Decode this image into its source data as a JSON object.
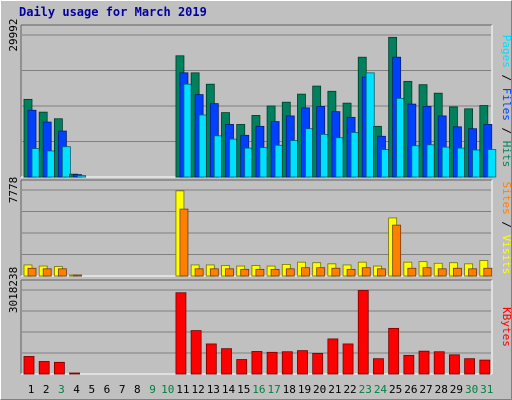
{
  "title": "Daily usage for March 2019",
  "colors": {
    "hits": "#00805c",
    "files": "#0040ff",
    "pages": "#00e0ff",
    "visits": "#ffff00",
    "sites": "#ff8000",
    "kbytes": "#ff0000",
    "weekend_label": "#008040",
    "weekday_label": "#000000"
  },
  "chart_data": [
    {
      "type": "bar",
      "title": "",
      "ylabel_parts": [
        {
          "text": "Pages",
          "color": "#00e0ff"
        },
        {
          "text": " / ",
          "color": "#000000"
        },
        {
          "text": "Files",
          "color": "#0040ff"
        },
        {
          "text": " / ",
          "color": "#000000"
        },
        {
          "text": "Hits",
          "color": "#00805c"
        }
      ],
      "ymax_label": "29992",
      "ylim": [
        0,
        29992
      ],
      "categories": [
        "1",
        "2",
        "3",
        "4",
        "5",
        "6",
        "7",
        "8",
        "9",
        "10",
        "11",
        "12",
        "13",
        "14",
        "15",
        "16",
        "17",
        "18",
        "19",
        "20",
        "21",
        "22",
        "23",
        "24",
        "25",
        "26",
        "27",
        "28",
        "29",
        "30",
        "31"
      ],
      "series": [
        {
          "name": "Hits",
          "values": [
            16400,
            13700,
            12300,
            600,
            0,
            0,
            0,
            0,
            0,
            0,
            25600,
            22000,
            19600,
            13600,
            11100,
            13000,
            15000,
            15800,
            17500,
            19200,
            18100,
            15600,
            25300,
            10700,
            29500,
            20200,
            19500,
            17700,
            14800,
            14400,
            15100
          ]
        },
        {
          "name": "Files",
          "values": [
            14100,
            11600,
            9700,
            500,
            0,
            0,
            0,
            0,
            0,
            0,
            22000,
            17400,
            15500,
            11100,
            8800,
            10700,
            11700,
            12900,
            14600,
            14900,
            13800,
            12600,
            21100,
            8600,
            25300,
            15400,
            14900,
            12900,
            10600,
            10200,
            11100
          ]
        },
        {
          "name": "Pages",
          "values": [
            6000,
            5500,
            6400,
            300,
            0,
            0,
            0,
            0,
            0,
            0,
            19600,
            13100,
            8700,
            8000,
            6100,
            6200,
            6700,
            7700,
            10200,
            9000,
            8300,
            9400,
            22000,
            5800,
            16600,
            6600,
            6800,
            6300,
            6100,
            5700,
            5800
          ]
        }
      ]
    },
    {
      "type": "bar",
      "title": "",
      "ylabel_parts": [
        {
          "text": "Sites",
          "color": "#ff8000"
        },
        {
          "text": " / ",
          "color": "#000000"
        },
        {
          "text": "Visits",
          "color": "#ffff00"
        }
      ],
      "ymax_label": "7778",
      "ylim": [
        0,
        7778
      ],
      "categories": [
        "1",
        "2",
        "3",
        "4",
        "5",
        "6",
        "7",
        "8",
        "9",
        "10",
        "11",
        "12",
        "13",
        "14",
        "15",
        "16",
        "17",
        "18",
        "19",
        "20",
        "21",
        "22",
        "23",
        "24",
        "25",
        "26",
        "27",
        "28",
        "29",
        "30",
        "31"
      ],
      "series": [
        {
          "name": "Visits",
          "values": [
            1000,
            900,
            850,
            80,
            0,
            0,
            0,
            0,
            0,
            0,
            7700,
            1000,
            1000,
            950,
            900,
            950,
            900,
            1050,
            1250,
            1200,
            1100,
            1000,
            1250,
            900,
            5250,
            1250,
            1300,
            1150,
            1200,
            1100,
            1400
          ]
        },
        {
          "name": "Sites",
          "values": [
            700,
            650,
            650,
            60,
            0,
            0,
            0,
            0,
            0,
            0,
            6050,
            650,
            650,
            650,
            600,
            600,
            600,
            650,
            750,
            750,
            700,
            600,
            750,
            650,
            4600,
            700,
            750,
            650,
            700,
            650,
            700
          ]
        }
      ]
    },
    {
      "type": "bar",
      "title": "",
      "ylabel_parts": [
        {
          "text": "KBytes",
          "color": "#ff0000"
        }
      ],
      "ymax_label": "3018238",
      "ylim": [
        0,
        3018238
      ],
      "categories": [
        "1",
        "2",
        "3",
        "4",
        "5",
        "6",
        "7",
        "8",
        "9",
        "10",
        "11",
        "12",
        "13",
        "14",
        "15",
        "16",
        "17",
        "18",
        "19",
        "20",
        "21",
        "22",
        "23",
        "24",
        "25",
        "26",
        "27",
        "28",
        "29",
        "30",
        "31"
      ],
      "series": [
        {
          "name": "KBytes",
          "values": [
            630000,
            450000,
            420000,
            30000,
            0,
            0,
            0,
            0,
            0,
            0,
            2920000,
            1560000,
            1080000,
            910000,
            520000,
            810000,
            780000,
            800000,
            840000,
            740000,
            1260000,
            1080000,
            3000000,
            550000,
            1640000,
            670000,
            820000,
            800000,
            690000,
            550000,
            500000
          ]
        }
      ]
    }
  ],
  "day_label_colors": [
    "#000000",
    "#000000",
    "#008040",
    "#000000",
    "#000000",
    "#000000",
    "#000000",
    "#000000",
    "#008040",
    "#008040",
    "#000000",
    "#000000",
    "#000000",
    "#000000",
    "#000000",
    "#008040",
    "#008040",
    "#000000",
    "#000000",
    "#000000",
    "#000000",
    "#000000",
    "#008040",
    "#008040",
    "#000000",
    "#000000",
    "#000000",
    "#000000",
    "#000000",
    "#008040",
    "#008040"
  ]
}
